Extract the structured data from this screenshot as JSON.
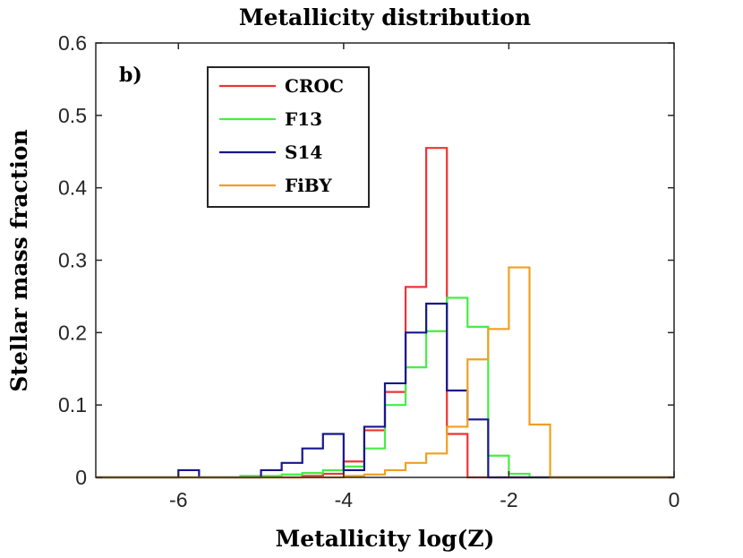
{
  "chart_data": {
    "type": "histogram-step",
    "title": "Metallicity distribution",
    "xlabel": "Metallicity log(Z)",
    "ylabel": "Stellar mass fraction",
    "panel_label": "b)",
    "xlim": [
      -7,
      0
    ],
    "ylim": [
      0,
      0.6
    ],
    "xticks": [
      -6,
      -4,
      -2,
      0
    ],
    "xtick_labels": [
      "-6",
      "-4",
      "-2",
      "0"
    ],
    "yticks": [
      0,
      0.1,
      0.2,
      0.3,
      0.4,
      0.5,
      0.6
    ],
    "ytick_labels": [
      "0",
      "0.1",
      "0.2",
      "0.3",
      "0.4",
      "0.5",
      "0.6"
    ],
    "grid": false,
    "legend_position": "top-left",
    "bin_edges": [
      -7,
      -6.75,
      -6.5,
      -6.25,
      -6,
      -5.75,
      -5.5,
      -5.25,
      -5,
      -4.75,
      -4.5,
      -4.25,
      -4,
      -3.75,
      -3.5,
      -3.25,
      -3,
      -2.75,
      -2.5,
      -2.25,
      -2,
      -1.75,
      -1.5,
      -1.25,
      -1,
      -0.75,
      -0.5,
      -0.25,
      0
    ],
    "series": [
      {
        "name": "CROC",
        "color": "#ee3333",
        "values": [
          0,
          0,
          0,
          0,
          0,
          0,
          0,
          0,
          0,
          0,
          0.002,
          0.005,
          0.022,
          0.065,
          0.118,
          0.263,
          0.455,
          0.06,
          0,
          0,
          0,
          0,
          0,
          0,
          0,
          0,
          0,
          0
        ]
      },
      {
        "name": "F13",
        "color": "#44ee44",
        "values": [
          0,
          0,
          0,
          0,
          0,
          0,
          0,
          0.002,
          0.002,
          0.004,
          0.006,
          0.01,
          0.015,
          0.04,
          0.1,
          0.152,
          0.202,
          0.248,
          0.208,
          0.03,
          0.005,
          0,
          0,
          0,
          0,
          0,
          0,
          0
        ]
      },
      {
        "name": "S14",
        "color": "#16168f",
        "values": [
          0,
          0,
          0,
          0,
          0.01,
          0,
          0,
          0,
          0.01,
          0.02,
          0.04,
          0.06,
          0.01,
          0.07,
          0.13,
          0.2,
          0.24,
          0.12,
          0.08,
          0,
          0,
          0,
          0,
          0,
          0,
          0,
          0,
          0
        ]
      },
      {
        "name": "FiBY",
        "color": "#f0a020",
        "values": [
          0,
          0,
          0,
          0,
          0,
          0,
          0,
          0,
          0,
          0,
          0,
          0,
          0.002,
          0.004,
          0.01,
          0.02,
          0.033,
          0.07,
          0.163,
          0.205,
          0.29,
          0.073,
          0,
          0,
          0,
          0,
          0,
          0
        ]
      }
    ]
  }
}
